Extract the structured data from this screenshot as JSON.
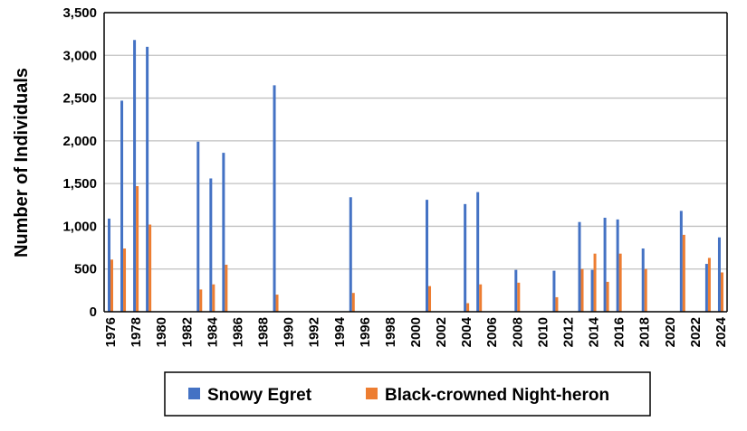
{
  "chart_data": {
    "type": "bar",
    "title": "",
    "xlabel": "",
    "ylabel": "Number of Individuals",
    "ylim": [
      0,
      3500
    ],
    "y_ticks": [
      "0",
      "500",
      "1,000",
      "1,500",
      "2,000",
      "2,500",
      "3,000",
      "3,500"
    ],
    "y_tick_values": [
      0,
      500,
      1000,
      1500,
      2000,
      2500,
      3000,
      3500
    ],
    "x_range": [
      1976,
      2024
    ],
    "x_tick_labels": [
      "1976",
      "1978",
      "1980",
      "1982",
      "1984",
      "1986",
      "1988",
      "1990",
      "1992",
      "1994",
      "1996",
      "1998",
      "2000",
      "2002",
      "2004",
      "2006",
      "2008",
      "2010",
      "2012",
      "2014",
      "2016",
      "2018",
      "2020",
      "2022",
      "2024"
    ],
    "grid": "horizontal",
    "legend_position": "bottom",
    "series": [
      {
        "name": "Snowy Egret",
        "color": "#4472C4",
        "points": [
          [
            1976,
            1090
          ],
          [
            1977,
            2470
          ],
          [
            1978,
            3180
          ],
          [
            1979,
            3100
          ],
          [
            1983,
            1990
          ],
          [
            1984,
            1560
          ],
          [
            1985,
            1860
          ],
          [
            1989,
            2650
          ],
          [
            1995,
            1340
          ],
          [
            2001,
            1310
          ],
          [
            2004,
            1260
          ],
          [
            2005,
            1400
          ],
          [
            2008,
            490
          ],
          [
            2011,
            480
          ],
          [
            2013,
            1050
          ],
          [
            2014,
            490
          ],
          [
            2015,
            1100
          ],
          [
            2016,
            1080
          ],
          [
            2018,
            740
          ],
          [
            2021,
            1180
          ],
          [
            2023,
            560
          ],
          [
            2024,
            870
          ]
        ]
      },
      {
        "name": "Black-crowned Night-heron",
        "color": "#ED7D31",
        "points": [
          [
            1976,
            610
          ],
          [
            1977,
            740
          ],
          [
            1978,
            1470
          ],
          [
            1979,
            1020
          ],
          [
            1983,
            260
          ],
          [
            1984,
            320
          ],
          [
            1985,
            550
          ],
          [
            1989,
            200
          ],
          [
            1995,
            220
          ],
          [
            2001,
            300
          ],
          [
            2004,
            100
          ],
          [
            2005,
            320
          ],
          [
            2008,
            340
          ],
          [
            2011,
            170
          ],
          [
            2013,
            500
          ],
          [
            2014,
            680
          ],
          [
            2015,
            350
          ],
          [
            2016,
            680
          ],
          [
            2018,
            500
          ],
          [
            2021,
            900
          ],
          [
            2023,
            630
          ],
          [
            2024,
            460
          ]
        ]
      }
    ]
  }
}
